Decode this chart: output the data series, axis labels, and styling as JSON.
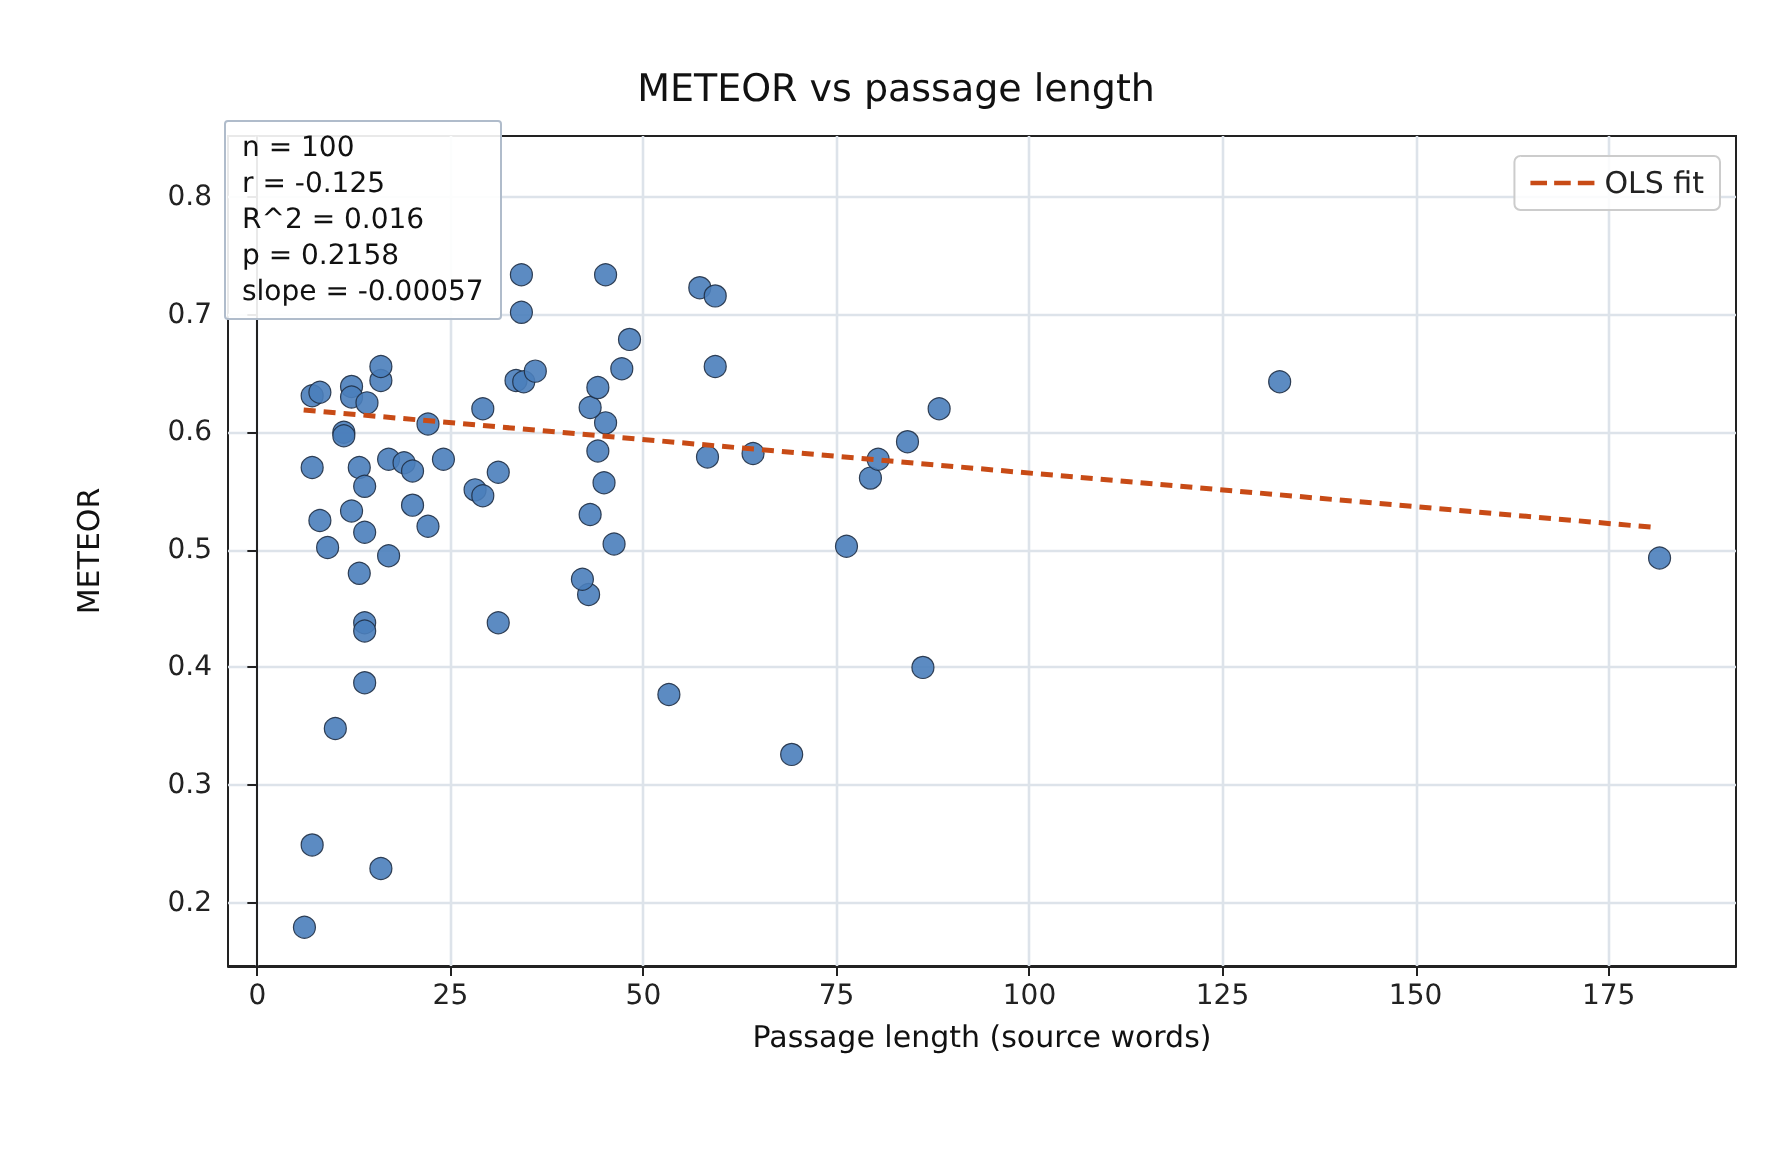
{
  "chart_data": {
    "type": "scatter",
    "title": "METEOR vs passage length",
    "xlabel": "Passage length (source words)",
    "ylabel": "METEOR",
    "xlim": [
      -3.8,
      191.5
    ],
    "ylim": [
      0.146,
      0.852
    ],
    "xticks": [
      0,
      25,
      50,
      75,
      100,
      125,
      150,
      175
    ],
    "yticks": [
      0.2,
      0.3,
      0.4,
      0.5,
      0.6,
      0.7,
      0.8
    ],
    "grid": true,
    "legend": "top right",
    "marker": "circle",
    "annotations": [
      "n = 100",
      "r = -0.125",
      "R^2 = 0.016",
      "p = 0.2158",
      "slope = -0.00057"
    ],
    "series": [
      {
        "type": "scatter",
        "color": "#4a7ebb",
        "x": [
          6.1,
          7.1,
          16.0,
          10.1,
          13.9,
          13.9,
          13.9,
          31.2,
          53.3,
          69.2,
          86.2,
          181.6,
          132.4,
          76.3,
          46.2,
          42.9,
          42.1,
          43.1,
          44.9,
          44.1,
          45.1,
          43.1,
          44.1,
          47.2,
          48.2,
          45.1,
          57.3,
          59.3,
          59.3,
          58.3,
          64.2,
          79.4,
          80.4,
          84.2,
          88.3,
          7.1,
          8.1,
          12.2,
          12.2,
          16.0,
          16.0,
          14.2,
          11.2,
          11.2,
          22.1,
          29.2,
          7.1,
          13.2,
          17.0,
          19.0,
          20.1,
          24.1,
          13.9,
          8.1,
          12.2,
          13.9,
          20.1,
          22.1,
          28.2,
          29.2,
          31.2,
          9.1,
          13.2,
          17.0,
          33.5,
          34.5,
          34.2,
          34.2,
          36.0
        ],
        "values": [
          0.179,
          0.249,
          0.229,
          0.348,
          0.387,
          0.438,
          0.431,
          0.438,
          0.377,
          0.326,
          0.4,
          0.493,
          0.643,
          0.503,
          0.505,
          0.462,
          0.475,
          0.53,
          0.557,
          0.584,
          0.608,
          0.621,
          0.638,
          0.654,
          0.679,
          0.734,
          0.723,
          0.716,
          0.656,
          0.579,
          0.582,
          0.561,
          0.577,
          0.592,
          0.62,
          0.631,
          0.634,
          0.639,
          0.63,
          0.644,
          0.656,
          0.625,
          0.6,
          0.597,
          0.607,
          0.62,
          0.57,
          0.57,
          0.577,
          0.574,
          0.567,
          0.577,
          0.554,
          0.525,
          0.533,
          0.515,
          0.538,
          0.52,
          0.551,
          0.546,
          0.566,
          0.502,
          0.48,
          0.495,
          0.644,
          0.643,
          0.702,
          0.734,
          0.652
        ]
      },
      {
        "type": "line",
        "name": "OLS fit",
        "color": "#c84b16",
        "line_style": "dashed",
        "marker": "none",
        "x": [
          6,
          181
        ],
        "values": [
          0.619,
          0.519
        ]
      }
    ]
  }
}
